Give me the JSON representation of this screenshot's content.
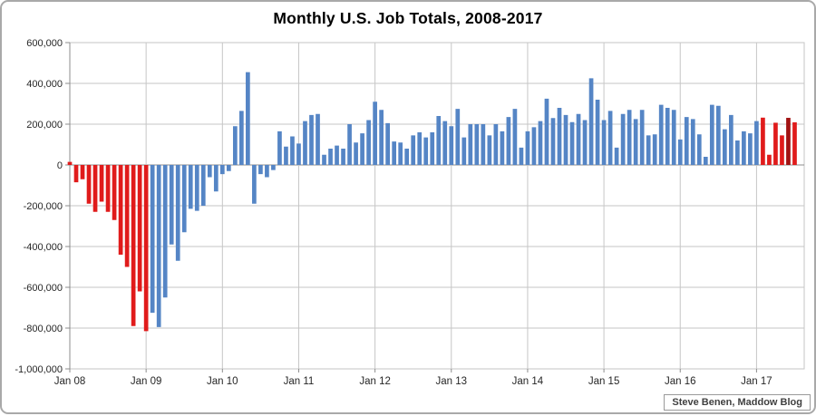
{
  "chart": {
    "title": "Monthly U.S. Job Totals, 2008-2017",
    "attribution": "Steve Benen, Maddow Blog"
  },
  "chart_data": {
    "type": "bar",
    "title": "Monthly U.S. Job Totals, 2008-2017",
    "xlabel": "",
    "ylabel": "",
    "x_start": "Jan 2008",
    "x_end": "Jul 2017",
    "ylim": [
      -1000000,
      600000
    ],
    "grid": true,
    "legend": "none",
    "y_ticks": [
      {
        "label": "600,000",
        "value": 600000
      },
      {
        "label": "400,000",
        "value": 400000
      },
      {
        "label": "200,000",
        "value": 200000
      },
      {
        "label": "0",
        "value": 0
      },
      {
        "label": "-200,000",
        "value": -200000
      },
      {
        "label": "-400,000",
        "value": -400000
      },
      {
        "label": "-600,000",
        "value": -600000
      },
      {
        "label": "-800,000",
        "value": -800000
      },
      {
        "label": "-1,000,000",
        "value": -1000000
      }
    ],
    "x_ticks": [
      {
        "label": "Jan 08",
        "month_index": 0
      },
      {
        "label": "Jan 09",
        "month_index": 12
      },
      {
        "label": "Jan 10",
        "month_index": 24
      },
      {
        "label": "Jan 11",
        "month_index": 36
      },
      {
        "label": "Jan 12",
        "month_index": 48
      },
      {
        "label": "Jan 13",
        "month_index": 60
      },
      {
        "label": "Jan 14",
        "month_index": 72
      },
      {
        "label": "Jan 15",
        "month_index": 84
      },
      {
        "label": "Jan 16",
        "month_index": 96
      },
      {
        "label": "Jan 17",
        "month_index": 108
      }
    ],
    "values": [
      15000,
      -85000,
      -70000,
      -190000,
      -230000,
      -180000,
      -230000,
      -270000,
      -440000,
      -500000,
      -790000,
      -620000,
      -815000,
      -725000,
      -795000,
      -650000,
      -390000,
      -470000,
      -330000,
      -215000,
      -225000,
      -200000,
      -60000,
      -130000,
      -45000,
      -30000,
      190000,
      265000,
      455000,
      -190000,
      -45000,
      -60000,
      -25000,
      165000,
      90000,
      140000,
      105000,
      215000,
      245000,
      250000,
      50000,
      80000,
      95000,
      80000,
      200000,
      110000,
      155000,
      220000,
      310000,
      270000,
      205000,
      115000,
      110000,
      80000,
      145000,
      160000,
      135000,
      160000,
      240000,
      215000,
      190000,
      275000,
      135000,
      200000,
      200000,
      200000,
      145000,
      200000,
      165000,
      235000,
      275000,
      85000,
      165000,
      185000,
      215000,
      325000,
      230000,
      280000,
      245000,
      210000,
      250000,
      220000,
      425000,
      320000,
      220000,
      265000,
      85000,
      250000,
      270000,
      225000,
      270000,
      145000,
      150000,
      295000,
      280000,
      270000,
      125000,
      235000,
      225000,
      150000,
      40000,
      295000,
      290000,
      175000,
      245000,
      120000,
      165000,
      155000,
      215000,
      232000,
      50000,
      207000,
      145000,
      231000,
      209000
    ],
    "color_segments": [
      {
        "start": 0,
        "end": 12,
        "color": "red"
      },
      {
        "start": 13,
        "end": 108,
        "color": "blue"
      },
      {
        "start": 109,
        "end": 112,
        "color": "red"
      },
      {
        "start": 113,
        "end": 113,
        "color": "dark_red"
      },
      {
        "start": 114,
        "end": 114,
        "color": "red"
      }
    ],
    "colors": {
      "blue": "#5585c5",
      "red": "#e01b1b",
      "dark_red": "#a11212",
      "grid": "#c6c6c6",
      "axis": "#8c8c8c",
      "label": "#262626"
    }
  }
}
